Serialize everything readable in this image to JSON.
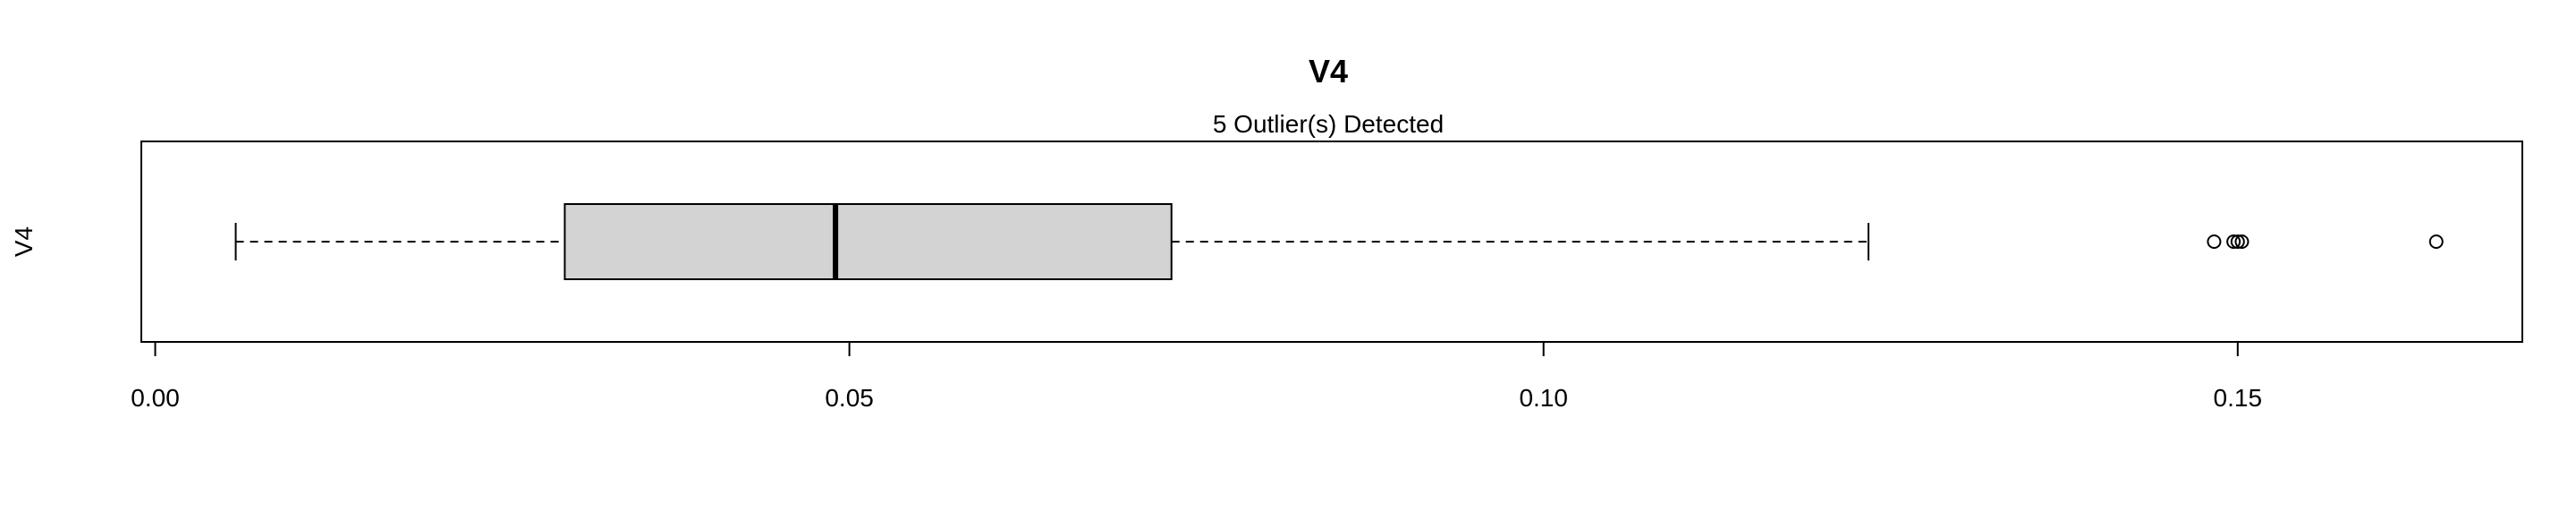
{
  "chart_data": {
    "type": "boxplot",
    "orientation": "horizontal",
    "title": "V4",
    "subtitle": "5 Outlier(s) Detected",
    "ylabel": "V4",
    "xlabel": "",
    "xlim": [
      -0.001,
      0.1705
    ],
    "x_ticks": [
      0.0,
      0.05,
      0.1,
      0.15
    ],
    "x_tick_labels": [
      "0.00",
      "0.05",
      "0.10",
      "0.15"
    ],
    "series": [
      {
        "whisker_low": 0.0058,
        "q1": 0.0295,
        "median": 0.049,
        "q3": 0.0732,
        "whisker_high": 0.1234,
        "outliers": [
          0.1483,
          0.1497,
          0.15,
          0.1503,
          0.1643
        ]
      }
    ],
    "box_fill": "#d3d3d3",
    "line_color": "#000000",
    "grid": false,
    "legend": "none"
  }
}
